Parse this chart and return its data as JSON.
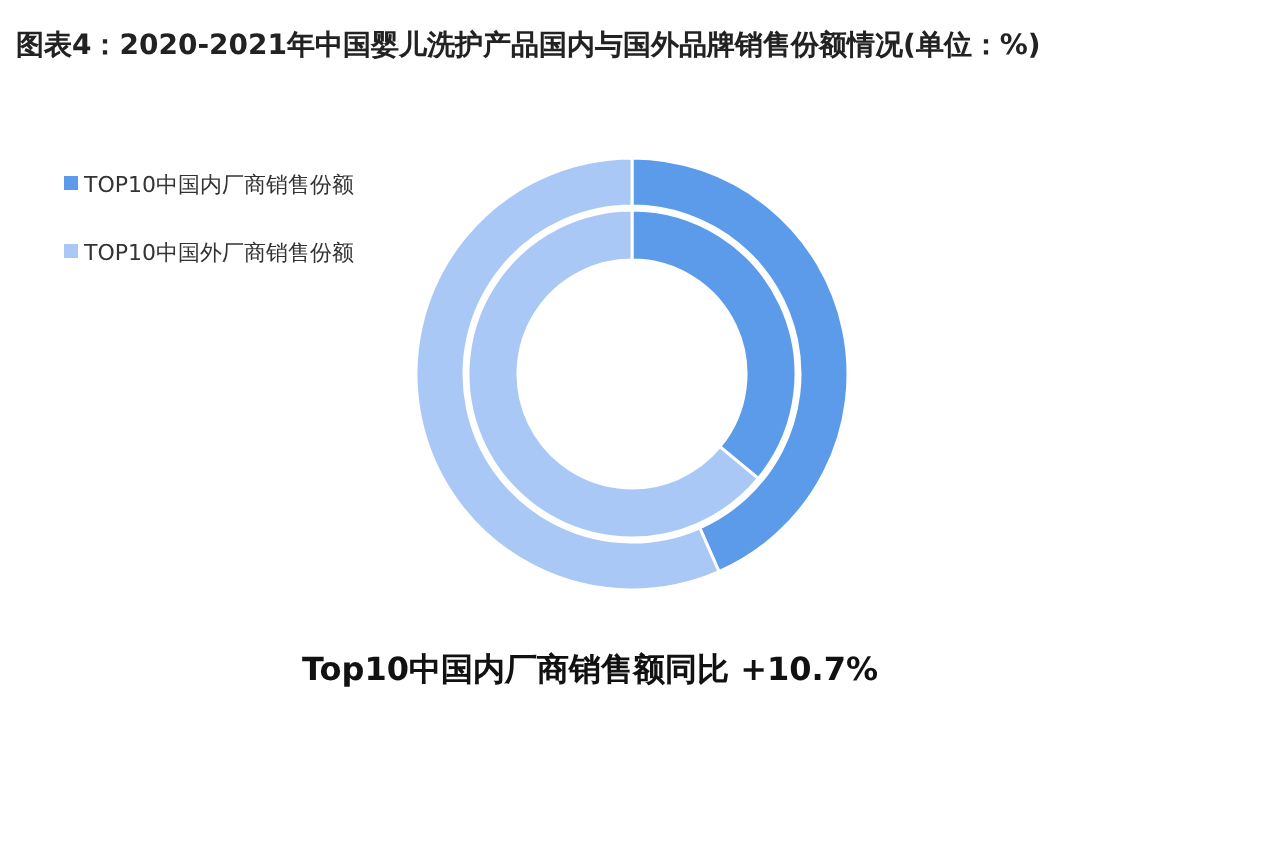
{
  "chart_data": {
    "type": "donut",
    "title": "图表4：2020-2021年中国婴儿洗护产品国内与国外品牌销售份额情况(单位：%)",
    "categories": [
      "TOP10中国内厂商销售份额",
      "TOP10中国外厂商销售份额"
    ],
    "colors": [
      "#5b9bea",
      "#a9c8f5"
    ],
    "series": [
      {
        "values": [
          43.4,
          56.6
        ]
      },
      {
        "values": [
          36,
          64
        ]
      }
    ],
    "legend": "top left",
    "annotations": [
      "Top10中国内厂商销售额同比 +10.7%"
    ]
  }
}
